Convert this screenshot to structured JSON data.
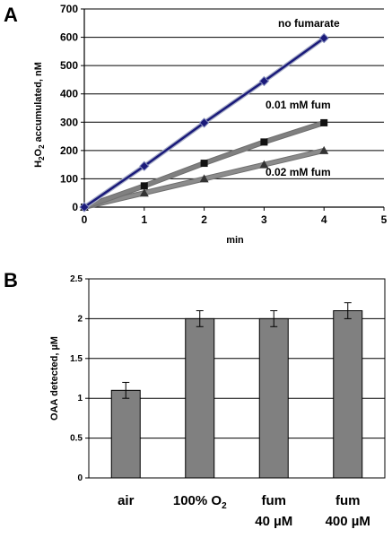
{
  "panelA": {
    "letter": "A",
    "chart_data": {
      "type": "line",
      "xlabel": "min",
      "ylabel_main": "H",
      "ylabel_sub1": "2",
      "ylabel_mid": "O",
      "ylabel_sub2": "2",
      "ylabel_rest": " accumulated, nM",
      "xlim": [
        0,
        5
      ],
      "ylim": [
        0,
        700
      ],
      "x_ticks": [
        0,
        1,
        2,
        3,
        4,
        5
      ],
      "y_ticks": [
        0,
        100,
        200,
        300,
        400,
        500,
        600,
        700
      ],
      "grid": "horizontal",
      "series": [
        {
          "name": "no fumarate",
          "color": "#1a1a7a",
          "marker": "diamond",
          "x": [
            0,
            1,
            2,
            3,
            4
          ],
          "values": [
            0,
            145,
            298,
            445,
            597
          ]
        },
        {
          "name": "0.01 mM fum",
          "color": "#808080",
          "marker": "square",
          "x": [
            0,
            1,
            2,
            3,
            4
          ],
          "values": [
            0,
            75,
            155,
            230,
            298
          ]
        },
        {
          "name": "0.02 mM fum",
          "color": "#8c8c8c",
          "marker": "triangle",
          "x": [
            0,
            1,
            2,
            3,
            4
          ],
          "values": [
            0,
            50,
            100,
            150,
            200
          ]
        }
      ]
    }
  },
  "panelB": {
    "letter": "B",
    "chart_data": {
      "type": "bar",
      "ylabel": "OAA detected, µM",
      "ylim": [
        0,
        2.5
      ],
      "y_ticks": [
        "0",
        "0.5",
        "1",
        "1.5",
        "2",
        "2.5"
      ],
      "categories": [
        {
          "line1": "air",
          "line2": ""
        },
        {
          "line1": "100% O",
          "sub": "2",
          "line2": ""
        },
        {
          "line1": "fum",
          "line2": "40 µM"
        },
        {
          "line1": "fum",
          "line2": "400 µM"
        }
      ],
      "values": [
        1.1,
        2.0,
        2.0,
        2.1
      ],
      "errors": [
        0.1,
        0.1,
        0.1,
        0.1
      ],
      "bar_color": "#808080",
      "grid": "horizontal"
    }
  }
}
